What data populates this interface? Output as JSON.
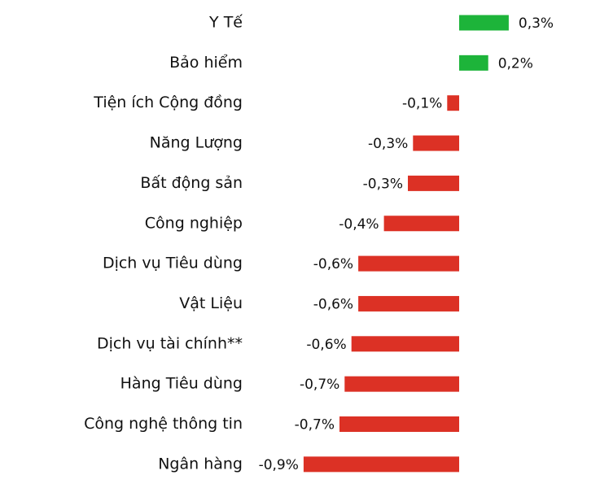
{
  "chart_data": {
    "type": "bar",
    "orientation": "horizontal",
    "categories": [
      "Y Tế",
      "Bảo hiểm",
      "Tiện ích Cộng đồng",
      "Năng Lượng",
      "Bất động sản",
      "Công nghiệp",
      "Dịch vụ Tiêu dùng",
      "Vật Liệu",
      "Dịch vụ tài chính**",
      "Hàng Tiêu dùng",
      "Công nghệ thông tin",
      "Ngân hàng"
    ],
    "values": [
      0.29,
      0.17,
      -0.07,
      -0.27,
      -0.3,
      -0.44,
      -0.59,
      -0.59,
      -0.63,
      -0.67,
      -0.7,
      -0.91
    ],
    "value_labels": [
      "0,3%",
      "0,2%",
      "-0,1%",
      "-0,3%",
      "-0,3%",
      "-0,4%",
      "-0,6%",
      "-0,6%",
      "-0,6%",
      "-0,7%",
      "-0,7%",
      "-0,9%"
    ],
    "positive_color": "#1db43a",
    "negative_color": "#dc3125"
  }
}
